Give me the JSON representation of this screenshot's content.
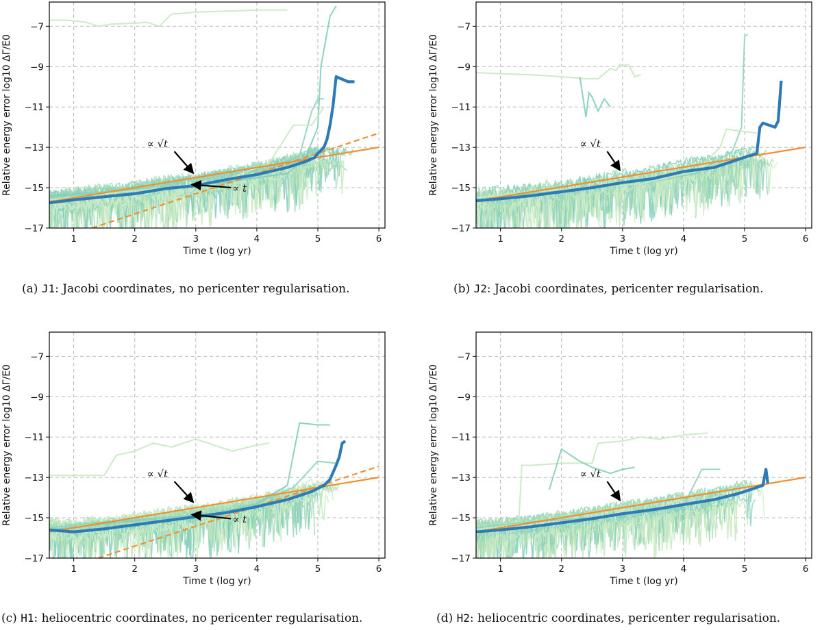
{
  "colors": {
    "sample_lines": [
      "#c7e9c0",
      "#a1dab4",
      "#7fcdbb",
      "#b5e0c4",
      "#8fd1be",
      "#d3eecd"
    ],
    "median": "#2c7bb6",
    "fit": "#f28e2b",
    "grid": "#b0b0b0"
  },
  "chart_data": [
    {
      "type": "line",
      "id": "J1",
      "caption": {
        "prefix": "(a)",
        "code": "J1",
        "text": ": Jacobi coordinates, no pericenter regularisation."
      },
      "xlabel": "Time t (log yr)",
      "ylabel": "Relative energy error log10 ΔΓ/E0",
      "xlim": [
        0.6,
        6.1
      ],
      "ylim": [
        -17,
        -5.8
      ],
      "xticks": [
        1,
        2,
        3,
        4,
        5,
        6
      ],
      "yticks": [
        -17,
        -15,
        -13,
        -11,
        -9,
        -7
      ],
      "grid": true,
      "median_series": {
        "name": "median",
        "x": [
          0.6,
          1.0,
          1.5,
          2.0,
          2.5,
          3.0,
          3.5,
          4.0,
          4.5,
          4.8,
          4.95,
          5.0,
          5.1,
          5.15,
          5.2,
          5.25,
          5.3,
          5.5,
          5.6
        ],
        "y": [
          -15.75,
          -15.6,
          -15.45,
          -15.3,
          -15.05,
          -14.9,
          -14.6,
          -14.35,
          -14.0,
          -13.7,
          -13.5,
          -13.3,
          -13.0,
          -12.6,
          -11.9,
          -10.9,
          -9.5,
          -9.75,
          -9.75
        ]
      },
      "fits": [
        {
          "name": "√t",
          "style": "solid",
          "x": [
            0.6,
            6.0
          ],
          "y": [
            -15.7,
            -13.0
          ]
        },
        {
          "name": "t",
          "style": "dashed",
          "x": [
            1.3,
            6.0
          ],
          "y": [
            -17.0,
            -12.3
          ]
        }
      ],
      "sample_seed": 11,
      "sample_count": 26,
      "sample_end_range": [
        4.6,
        5.6
      ],
      "outliers": [
        {
          "x": [
            0.6,
            0.9,
            1.2,
            1.4,
            1.6,
            2.0,
            2.2,
            2.4,
            2.6,
            3.0,
            3.5,
            4.0,
            4.5
          ],
          "y": [
            -6.7,
            -6.7,
            -6.8,
            -7.0,
            -6.9,
            -6.85,
            -6.8,
            -7.0,
            -6.4,
            -6.3,
            -6.25,
            -6.2,
            -6.2
          ]
        },
        {
          "x": [
            0.6,
            1.5,
            2.5,
            3.3,
            4.5,
            4.8,
            5.0,
            5.05,
            5.2,
            5.3
          ],
          "y": [
            -15.4,
            -15.2,
            -15.0,
            -14.8,
            -14.3,
            -13.5,
            -12.0,
            -9.0,
            -6.5,
            -6.0
          ]
        },
        {
          "x": [
            0.6,
            1.5,
            2.5,
            3.3,
            4.0,
            4.7,
            4.9,
            5.0,
            5.1
          ],
          "y": [
            -15.5,
            -15.2,
            -15.0,
            -14.9,
            -14.4,
            -13.4,
            -11.2,
            -10.6,
            -10.6
          ]
        },
        {
          "x": [
            0.6,
            1.5,
            2.5,
            3.3,
            4.2,
            4.6,
            4.9,
            5.1
          ],
          "y": [
            -15.6,
            -15.3,
            -15.0,
            -14.8,
            -13.8,
            -11.9,
            -11.9,
            -11.0
          ]
        }
      ],
      "annotations": [
        {
          "text": "∝ √t",
          "label_at": [
            2.2,
            -13.0
          ],
          "arrow_to": [
            2.95,
            -14.25
          ]
        },
        {
          "text": "∝ t",
          "label_at": [
            3.6,
            -15.2
          ],
          "arrow_to": [
            2.95,
            -14.85
          ]
        }
      ]
    },
    {
      "type": "line",
      "id": "J2",
      "caption": {
        "prefix": "(b)",
        "code": "J2",
        "text": ": Jacobi coordinates, pericenter regularisation."
      },
      "xlabel": "Time t (log yr)",
      "ylabel": "Relative energy error log10 ΔΓ/E0",
      "xlim": [
        0.6,
        6.1
      ],
      "ylim": [
        -17,
        -5.8
      ],
      "xticks": [
        1,
        2,
        3,
        4,
        5,
        6
      ],
      "yticks": [
        -17,
        -15,
        -13,
        -11,
        -9,
        -7
      ],
      "grid": true,
      "median_series": {
        "name": "median",
        "x": [
          0.6,
          1.0,
          1.5,
          2.0,
          2.5,
          3.0,
          3.5,
          4.0,
          4.5,
          4.9,
          5.2,
          5.25,
          5.3,
          5.5,
          5.55,
          5.6
        ],
        "y": [
          -15.65,
          -15.55,
          -15.4,
          -15.2,
          -15.0,
          -14.75,
          -14.55,
          -14.2,
          -14.0,
          -13.6,
          -13.3,
          -12.0,
          -11.8,
          -12.0,
          -11.7,
          -9.7
        ]
      },
      "fits": [
        {
          "name": "√t",
          "style": "solid",
          "x": [
            0.6,
            6.0
          ],
          "y": [
            -15.65,
            -13.0
          ]
        }
      ],
      "sample_seed": 23,
      "sample_count": 26,
      "sample_end_range": [
        4.6,
        5.6
      ],
      "outliers": [
        {
          "x": [
            0.6,
            1.0,
            1.5,
            2.0,
            2.4,
            2.6,
            2.8,
            2.9,
            2.95,
            3.0,
            3.1,
            3.2,
            3.3
          ],
          "y": [
            -9.3,
            -9.35,
            -9.4,
            -9.5,
            -9.6,
            -9.6,
            -9.1,
            -9.2,
            -8.9,
            -8.95,
            -8.9,
            -9.5,
            -9.4
          ]
        },
        {
          "x": [
            2.3,
            2.4,
            2.45,
            2.5,
            2.6,
            2.7,
            2.8
          ],
          "y": [
            -9.5,
            -11.5,
            -10.3,
            -10.5,
            -11.2,
            -10.6,
            -11.0
          ]
        },
        {
          "x": [
            0.6,
            1.5,
            2.5,
            3.3,
            4.2,
            4.8,
            4.95,
            5.0,
            5.05
          ],
          "y": [
            -15.6,
            -15.3,
            -15.0,
            -14.8,
            -14.3,
            -13.2,
            -12.0,
            -7.5,
            -7.4
          ]
        },
        {
          "x": [
            0.6,
            1.5,
            2.5,
            3.3,
            4.2,
            4.6,
            4.7,
            5.2
          ],
          "y": [
            -15.5,
            -15.2,
            -15.0,
            -14.8,
            -14.2,
            -13.0,
            -12.1,
            -12.3
          ]
        }
      ],
      "annotations": [
        {
          "text": "∝ √t",
          "label_at": [
            2.3,
            -13.0
          ],
          "arrow_to": [
            2.95,
            -14.1
          ]
        }
      ]
    },
    {
      "type": "line",
      "id": "H1",
      "caption": {
        "prefix": "(c)",
        "code": "H1",
        "text": ": heliocentric coordinates, no pericenter regularisation."
      },
      "xlabel": "Time t (log yr)",
      "ylabel": "Relative energy error log10 ΔΓ/E0",
      "xlim": [
        0.6,
        6.1
      ],
      "ylim": [
        -17,
        -5.8
      ],
      "xticks": [
        1,
        2,
        3,
        4,
        5,
        6
      ],
      "yticks": [
        -17,
        -15,
        -13,
        -11,
        -9,
        -7
      ],
      "grid": true,
      "median_series": {
        "name": "median",
        "x": [
          0.6,
          1.0,
          1.5,
          2.0,
          2.5,
          3.0,
          3.5,
          4.0,
          4.5,
          4.9,
          5.1,
          5.2,
          5.3,
          5.35,
          5.4,
          5.45
        ],
        "y": [
          -15.6,
          -15.7,
          -15.55,
          -15.35,
          -15.15,
          -14.95,
          -14.75,
          -14.45,
          -14.1,
          -13.7,
          -13.4,
          -13.1,
          -12.4,
          -12.0,
          -11.3,
          -11.2
        ]
      },
      "fits": [
        {
          "name": "√t",
          "style": "solid",
          "x": [
            0.6,
            6.0
          ],
          "y": [
            -15.7,
            -13.0
          ]
        },
        {
          "name": "t",
          "style": "dashed",
          "x": [
            1.4,
            6.0
          ],
          "y": [
            -17.0,
            -12.45
          ]
        }
      ],
      "sample_seed": 37,
      "sample_count": 26,
      "sample_end_range": [
        4.5,
        5.4
      ],
      "outliers": [
        {
          "x": [
            0.6,
            1.0,
            1.5,
            1.7,
            2.0,
            2.3,
            2.6,
            3.0,
            3.3,
            3.6,
            4.0,
            4.2
          ],
          "y": [
            -12.9,
            -12.9,
            -12.9,
            -11.9,
            -11.7,
            -11.3,
            -11.5,
            -11.1,
            -11.4,
            -11.7,
            -11.4,
            -11.3
          ]
        },
        {
          "x": [
            0.6,
            1.5,
            2.5,
            3.3,
            4.0,
            4.5,
            4.7,
            5.0,
            5.2
          ],
          "y": [
            -15.6,
            -15.3,
            -15.0,
            -14.8,
            -14.3,
            -13.4,
            -10.3,
            -10.4,
            -10.4
          ]
        },
        {
          "x": [
            0.6,
            1.5,
            2.5,
            3.3,
            4.0,
            4.6,
            5.0,
            5.3
          ],
          "y": [
            -15.5,
            -15.2,
            -15.0,
            -14.8,
            -14.3,
            -13.5,
            -12.2,
            -12.3
          ]
        }
      ],
      "annotations": [
        {
          "text": "∝ √t",
          "label_at": [
            2.2,
            -13.0
          ],
          "arrow_to": [
            2.95,
            -14.2
          ]
        },
        {
          "text": "∝ t",
          "label_at": [
            3.6,
            -15.25
          ],
          "arrow_to": [
            2.95,
            -14.85
          ]
        }
      ]
    },
    {
      "type": "line",
      "id": "H2",
      "caption": {
        "prefix": "(d)",
        "code": "H2",
        "text": ": heliocentric coordinates, pericenter regularisation."
      },
      "xlabel": "Time t (log yr)",
      "ylabel": "Relative energy error log10 ΔΓ/E0",
      "xlim": [
        0.6,
        6.1
      ],
      "ylim": [
        -17,
        -5.8
      ],
      "xticks": [
        1,
        2,
        3,
        4,
        5,
        6
      ],
      "yticks": [
        -17,
        -15,
        -13,
        -11,
        -9,
        -7
      ],
      "grid": true,
      "median_series": {
        "name": "median",
        "x": [
          0.6,
          1.0,
          1.5,
          2.0,
          2.5,
          3.0,
          3.5,
          4.0,
          4.5,
          4.9,
          5.2,
          5.3,
          5.35,
          5.38
        ],
        "y": [
          -15.7,
          -15.6,
          -15.45,
          -15.25,
          -15.05,
          -14.8,
          -14.6,
          -14.35,
          -14.1,
          -13.8,
          -13.5,
          -13.4,
          -12.6,
          -13.3
        ]
      },
      "fits": [
        {
          "name": "√t",
          "style": "solid",
          "x": [
            0.6,
            6.0
          ],
          "y": [
            -15.7,
            -13.0
          ]
        }
      ],
      "sample_seed": 53,
      "sample_count": 26,
      "sample_end_range": [
        4.5,
        5.35
      ],
      "outliers": [
        {
          "x": [
            0.6,
            1.0,
            1.3,
            1.35,
            1.5,
            2.0,
            2.5,
            2.6,
            3.0,
            3.3,
            3.6,
            4.0,
            4.4
          ],
          "y": [
            -15.6,
            -15.4,
            -15.2,
            -12.4,
            -12.4,
            -12.3,
            -12.3,
            -11.3,
            -11.2,
            -11.0,
            -11.1,
            -10.9,
            -10.8
          ]
        },
        {
          "x": [
            1.8,
            2.0,
            2.3,
            2.5,
            2.8,
            3.0,
            3.2
          ],
          "y": [
            -13.6,
            -11.6,
            -12.2,
            -12.5,
            -12.8,
            -12.6,
            -12.5
          ]
        },
        {
          "x": [
            0.6,
            1.5,
            2.5,
            3.5,
            4.0,
            4.3,
            4.6
          ],
          "y": [
            -15.5,
            -15.2,
            -15.0,
            -14.7,
            -14.4,
            -12.6,
            -12.6
          ]
        }
      ],
      "annotations": [
        {
          "text": "∝ √t",
          "label_at": [
            2.3,
            -13.0
          ],
          "arrow_to": [
            2.95,
            -14.1
          ]
        }
      ]
    }
  ]
}
